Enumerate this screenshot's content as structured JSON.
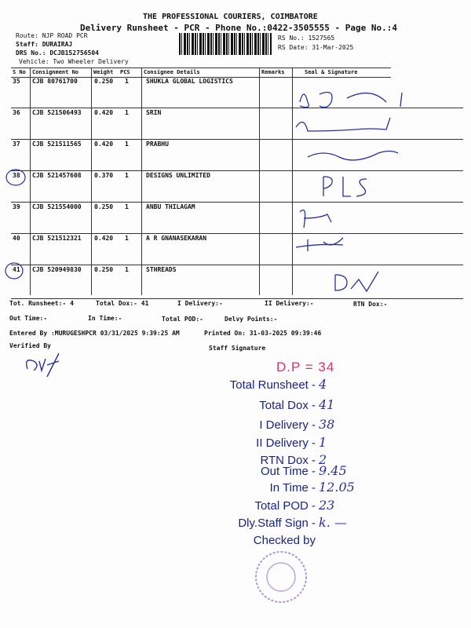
{
  "header": {
    "company": "THE PROFESSIONAL COURIERS, COIMBATORE",
    "subtitle": "Delivery Runsheet - PCR - Phone No.:0422-3505555 - Page No.:4",
    "route": "Route: NJP ROAD  PCR",
    "staff": "Staff: DURAIRAJ",
    "drs": "DRS No.: DCJB152756504",
    "vehicle": "Vehicle: Two Wheeler Delivery",
    "rs_no": "RS No.: 1527565",
    "rs_date": "RS Date: 31-Mar-2025"
  },
  "table": {
    "columns": [
      "S No",
      "Consignment No",
      "Weight",
      "PCS",
      "Consignee Details",
      "Remarks",
      "Seal & Signature"
    ],
    "rows": [
      {
        "sno": "35",
        "cn": "CJB 80761700",
        "weight": "0.250",
        "pcs": "1",
        "consignee": "SHUKLA GLOBAL LOGISTICS",
        "signature": "B.D.",
        "circled": false
      },
      {
        "sno": "36",
        "cn": "CJB 521506493",
        "weight": "0.420",
        "pcs": "1",
        "consignee": "SRIN",
        "signature": "Srinivasan",
        "circled": false
      },
      {
        "sno": "37",
        "cn": "CJB 521511565",
        "weight": "0.420",
        "pcs": "1",
        "consignee": "PRABHU",
        "signature": "",
        "circled": false
      },
      {
        "sno": "38",
        "cn": "CJB 521457608",
        "weight": "0.370",
        "pcs": "1",
        "consignee": "DESIGNS UNLIMITED",
        "signature": "PIS",
        "circled": true
      },
      {
        "sno": "39",
        "cn": "CJB 521554000",
        "weight": "0.250",
        "pcs": "1",
        "consignee": "ANBU THILAGAM",
        "signature": "",
        "circled": false
      },
      {
        "sno": "40",
        "cn": "CJB 521512321",
        "weight": "0.420",
        "pcs": "1",
        "consignee": "A R GNANASEKARAN",
        "signature": "",
        "circled": false
      },
      {
        "sno": "41",
        "cn": "CJB 520949830",
        "weight": "0.250",
        "pcs": "1",
        "consignee": "STHREADS",
        "signature": "DK",
        "circled": true
      }
    ]
  },
  "footer": {
    "tot_runsheet": "Tot. Runsheet:- 4",
    "total_dox": "Total Dox:-   41",
    "i_delivery": "I Delivery:-",
    "ii_delivery": "II Delivery:-",
    "rtn_dox": "RTN Dox:-",
    "out_time": "Out Time:-",
    "in_time": "In Time:-",
    "total_pod": "Total POD:-",
    "delvy_points": "Delvy Points:-",
    "entered_by": "Entered By :MURUGESHPCR 03/31/2025 9:39:25 AM",
    "printed_on": "Printed On: 31-03-2025 09:39:46",
    "verified_by": "Verified By",
    "staff_signature": "Staff Signature"
  },
  "handwritten_summary": {
    "dp": "D.P = 34",
    "items": [
      {
        "label": "Total Runsheet -",
        "value": "4"
      },
      {
        "label": "Total Dox -",
        "value": "41"
      },
      {
        "label": "I Delivery -",
        "value": "38"
      },
      {
        "label": "II Delivery -",
        "value": "1"
      },
      {
        "label": "RTN Dox -",
        "value": "2"
      },
      {
        "label": "Out Time  -",
        "value": "9.45"
      },
      {
        "label": "In Time  -",
        "value": "12.05"
      },
      {
        "label": "Total POD  -",
        "value": "23"
      },
      {
        "label": "Dly.Staff Sign  -",
        "value": "k. —"
      },
      {
        "label": "Checked by",
        "value": ""
      }
    ]
  },
  "colors": {
    "ink": "#27309a",
    "red_ink": "#d6336c",
    "stamp": "#8a6fc4"
  }
}
